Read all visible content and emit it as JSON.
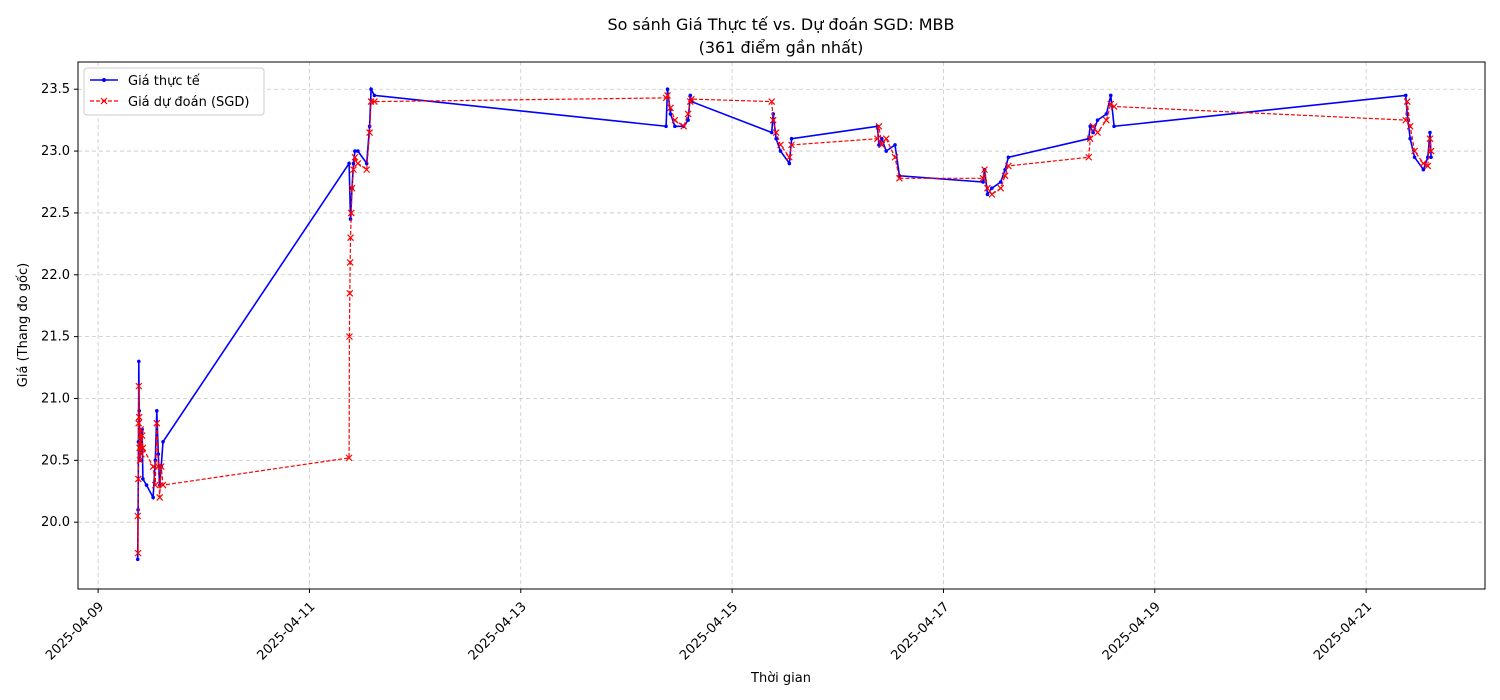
{
  "chart_data": {
    "type": "line",
    "title": "So sánh Giá Thực tế vs. Dự đoán SGD: MBB",
    "subtitle": "(361 điểm gần nhất)",
    "xlabel": "Thời gian",
    "ylabel": "Giá (Thang đo gốc)",
    "x_axis_type": "date",
    "xlim": [
      "2025-04-08T19:26",
      "2025-04-22T03:00"
    ],
    "ylim": [
      19.46,
      23.72
    ],
    "x_ticks": [
      "2025-04-09",
      "2025-04-11",
      "2025-04-13",
      "2025-04-15",
      "2025-04-17",
      "2025-04-19",
      "2025-04-21"
    ],
    "y_ticks": [
      20.0,
      20.5,
      21.0,
      21.5,
      22.0,
      22.5,
      23.0,
      23.5
    ],
    "y_tick_labels": [
      "20.0",
      "20.5",
      "21.0",
      "21.5",
      "22.0",
      "22.5",
      "23.0",
      "23.5"
    ],
    "grid": true,
    "legend_position": "top-left",
    "series": [
      {
        "name": "Giá thực tế",
        "color": "#0000ff",
        "line_style": "solid",
        "marker": "dot",
        "points": [
          [
            "2025-04-09T09:00",
            19.7
          ],
          [
            "2025-04-09T09:05",
            20.1
          ],
          [
            "2025-04-09T09:10",
            20.65
          ],
          [
            "2025-04-09T09:15",
            21.3
          ],
          [
            "2025-04-09T09:20",
            20.9
          ],
          [
            "2025-04-09T09:25",
            20.75
          ],
          [
            "2025-04-09T09:30",
            20.5
          ],
          [
            "2025-04-09T09:40",
            20.7
          ],
          [
            "2025-04-09T09:50",
            20.6
          ],
          [
            "2025-04-09T10:00",
            20.75
          ],
          [
            "2025-04-09T10:10",
            20.35
          ],
          [
            "2025-04-09T11:00",
            20.3
          ],
          [
            "2025-04-09T12:30",
            20.2
          ],
          [
            "2025-04-09T13:00",
            20.5
          ],
          [
            "2025-04-09T13:20",
            20.9
          ],
          [
            "2025-04-09T13:40",
            20.55
          ],
          [
            "2025-04-09T14:00",
            20.3
          ],
          [
            "2025-04-09T14:20",
            20.45
          ],
          [
            "2025-04-09T14:45",
            20.65
          ],
          [
            "2025-04-11T09:00",
            22.9
          ],
          [
            "2025-04-11T09:20",
            22.45
          ],
          [
            "2025-04-11T09:40",
            22.7
          ],
          [
            "2025-04-11T10:00",
            22.9
          ],
          [
            "2025-04-11T10:20",
            23.0
          ],
          [
            "2025-04-11T11:00",
            23.0
          ],
          [
            "2025-04-11T13:00",
            22.9
          ],
          [
            "2025-04-11T13:40",
            23.2
          ],
          [
            "2025-04-11T14:00",
            23.5
          ],
          [
            "2025-04-11T14:45",
            23.45
          ],
          [
            "2025-04-14T09:00",
            23.2
          ],
          [
            "2025-04-14T09:20",
            23.5
          ],
          [
            "2025-04-14T10:00",
            23.3
          ],
          [
            "2025-04-14T11:00",
            23.2
          ],
          [
            "2025-04-14T13:00",
            23.2
          ],
          [
            "2025-04-14T14:00",
            23.25
          ],
          [
            "2025-04-14T14:30",
            23.45
          ],
          [
            "2025-04-14T14:45",
            23.4
          ],
          [
            "2025-04-15T09:00",
            23.15
          ],
          [
            "2025-04-15T09:20",
            23.3
          ],
          [
            "2025-04-15T10:00",
            23.1
          ],
          [
            "2025-04-15T11:00",
            23.0
          ],
          [
            "2025-04-15T13:00",
            22.9
          ],
          [
            "2025-04-15T13:30",
            23.1
          ],
          [
            "2025-04-16T09:00",
            23.2
          ],
          [
            "2025-04-16T09:20",
            23.05
          ],
          [
            "2025-04-16T10:00",
            23.1
          ],
          [
            "2025-04-16T11:00",
            23.0
          ],
          [
            "2025-04-16T13:00",
            23.05
          ],
          [
            "2025-04-16T14:00",
            22.8
          ],
          [
            "2025-04-17T09:00",
            22.75
          ],
          [
            "2025-04-17T09:20",
            22.85
          ],
          [
            "2025-04-17T10:00",
            22.65
          ],
          [
            "2025-04-17T11:00",
            22.7
          ],
          [
            "2025-04-17T13:00",
            22.75
          ],
          [
            "2025-04-17T14:00",
            22.85
          ],
          [
            "2025-04-17T14:45",
            22.95
          ],
          [
            "2025-04-18T09:00",
            23.1
          ],
          [
            "2025-04-18T09:20",
            23.2
          ],
          [
            "2025-04-18T10:00",
            23.15
          ],
          [
            "2025-04-18T11:00",
            23.25
          ],
          [
            "2025-04-18T13:00",
            23.3
          ],
          [
            "2025-04-18T14:00",
            23.45
          ],
          [
            "2025-04-18T14:45",
            23.2
          ],
          [
            "2025-04-21T09:00",
            23.45
          ],
          [
            "2025-04-21T09:20",
            23.3
          ],
          [
            "2025-04-21T10:00",
            23.1
          ],
          [
            "2025-04-21T11:00",
            22.95
          ],
          [
            "2025-04-21T13:00",
            22.85
          ],
          [
            "2025-04-21T14:00",
            22.95
          ],
          [
            "2025-04-21T14:30",
            23.15
          ],
          [
            "2025-04-21T14:45",
            22.95
          ]
        ]
      },
      {
        "name": "Giá dự đoán (SGD)",
        "color": "#ff0000",
        "line_style": "dashed",
        "marker": "x",
        "points": [
          [
            "2025-04-09T09:00",
            20.05
          ],
          [
            "2025-04-09T09:05",
            19.75
          ],
          [
            "2025-04-09T09:08",
            20.35
          ],
          [
            "2025-04-09T09:12",
            20.8
          ],
          [
            "2025-04-09T09:15",
            21.1
          ],
          [
            "2025-04-09T09:20",
            20.85
          ],
          [
            "2025-04-09T09:25",
            20.6
          ],
          [
            "2025-04-09T09:30",
            20.5
          ],
          [
            "2025-04-09T09:40",
            20.75
          ],
          [
            "2025-04-09T09:50",
            20.55
          ],
          [
            "2025-04-09T10:00",
            20.7
          ],
          [
            "2025-04-09T10:10",
            20.6
          ],
          [
            "2025-04-09T12:30",
            20.45
          ],
          [
            "2025-04-09T13:00",
            20.3
          ],
          [
            "2025-04-09T13:20",
            20.8
          ],
          [
            "2025-04-09T13:40",
            20.45
          ],
          [
            "2025-04-09T14:00",
            20.2
          ],
          [
            "2025-04-09T14:20",
            20.45
          ],
          [
            "2025-04-09T14:45",
            20.3
          ],
          [
            "2025-04-11T09:00",
            20.52
          ],
          [
            "2025-04-11T09:05",
            21.5
          ],
          [
            "2025-04-11T09:10",
            21.85
          ],
          [
            "2025-04-11T09:15",
            22.1
          ],
          [
            "2025-04-11T09:20",
            22.3
          ],
          [
            "2025-04-11T09:30",
            22.5
          ],
          [
            "2025-04-11T09:40",
            22.7
          ],
          [
            "2025-04-11T10:00",
            22.85
          ],
          [
            "2025-04-11T10:20",
            22.95
          ],
          [
            "2025-04-11T11:00",
            22.9
          ],
          [
            "2025-04-11T13:00",
            22.85
          ],
          [
            "2025-04-11T13:40",
            23.15
          ],
          [
            "2025-04-11T14:00",
            23.4
          ],
          [
            "2025-04-11T14:45",
            23.4
          ],
          [
            "2025-04-14T09:00",
            23.43
          ],
          [
            "2025-04-14T09:20",
            23.45
          ],
          [
            "2025-04-14T10:00",
            23.35
          ],
          [
            "2025-04-14T11:00",
            23.25
          ],
          [
            "2025-04-14T13:00",
            23.2
          ],
          [
            "2025-04-14T14:00",
            23.3
          ],
          [
            "2025-04-14T14:30",
            23.4
          ],
          [
            "2025-04-14T14:45",
            23.42
          ],
          [
            "2025-04-15T09:00",
            23.4
          ],
          [
            "2025-04-15T09:20",
            23.25
          ],
          [
            "2025-04-15T10:00",
            23.15
          ],
          [
            "2025-04-15T11:00",
            23.05
          ],
          [
            "2025-04-15T13:00",
            22.95
          ],
          [
            "2025-04-15T13:30",
            23.05
          ],
          [
            "2025-04-16T09:00",
            23.1
          ],
          [
            "2025-04-16T09:20",
            23.2
          ],
          [
            "2025-04-16T10:00",
            23.05
          ],
          [
            "2025-04-16T11:00",
            23.1
          ],
          [
            "2025-04-16T13:00",
            22.95
          ],
          [
            "2025-04-16T14:00",
            22.78
          ],
          [
            "2025-04-17T09:00",
            22.78
          ],
          [
            "2025-04-17T09:20",
            22.85
          ],
          [
            "2025-04-17T10:00",
            22.7
          ],
          [
            "2025-04-17T11:00",
            22.65
          ],
          [
            "2025-04-17T13:00",
            22.7
          ],
          [
            "2025-04-17T14:00",
            22.8
          ],
          [
            "2025-04-17T14:45",
            22.88
          ],
          [
            "2025-04-18T09:00",
            22.95
          ],
          [
            "2025-04-18T09:20",
            23.1
          ],
          [
            "2025-04-18T10:00",
            23.2
          ],
          [
            "2025-04-18T11:00",
            23.15
          ],
          [
            "2025-04-18T13:00",
            23.25
          ],
          [
            "2025-04-18T14:00",
            23.38
          ],
          [
            "2025-04-18T14:45",
            23.36
          ],
          [
            "2025-04-21T09:00",
            23.25
          ],
          [
            "2025-04-21T09:20",
            23.4
          ],
          [
            "2025-04-21T10:00",
            23.2
          ],
          [
            "2025-04-21T11:00",
            23.0
          ],
          [
            "2025-04-21T13:00",
            22.9
          ],
          [
            "2025-04-21T14:00",
            22.88
          ],
          [
            "2025-04-21T14:30",
            23.1
          ],
          [
            "2025-04-21T14:45",
            23.0
          ]
        ]
      }
    ]
  }
}
